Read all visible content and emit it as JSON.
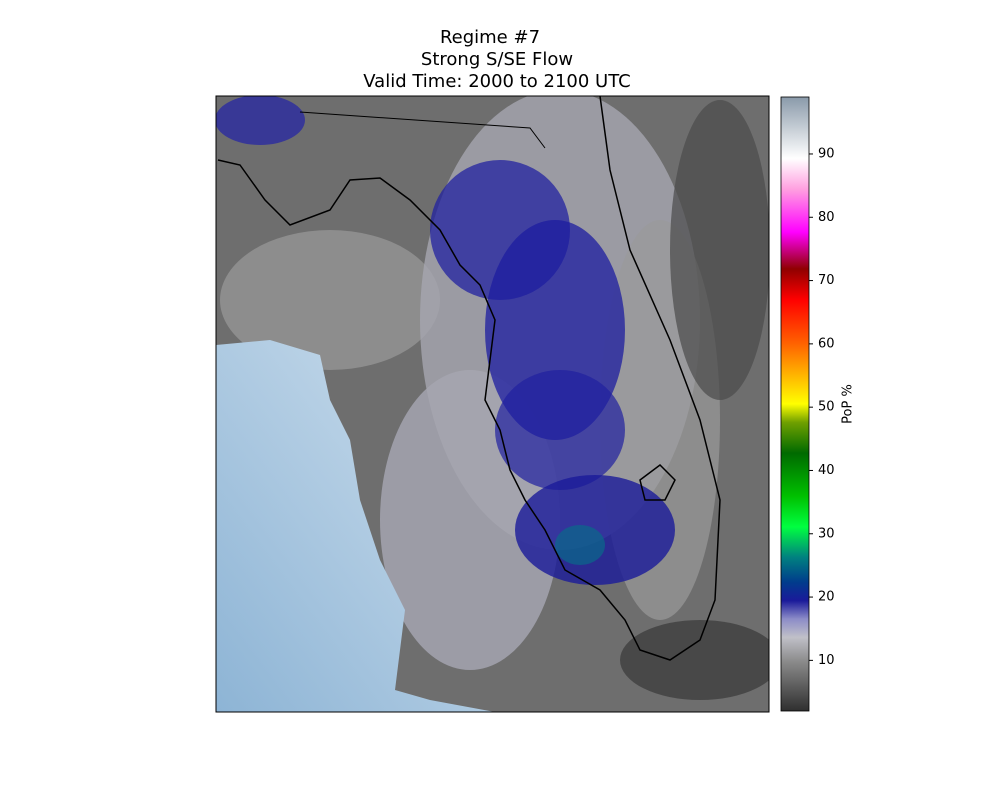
{
  "title": [
    "Regime #7",
    "Strong S/SE Flow",
    "Valid Time: 2000 to 2100 UTC"
  ],
  "colorbar": {
    "label": "PoP %",
    "lim": [
      2,
      99
    ],
    "ticks": [
      10,
      20,
      30,
      40,
      50,
      60,
      70,
      80,
      90
    ]
  }
}
